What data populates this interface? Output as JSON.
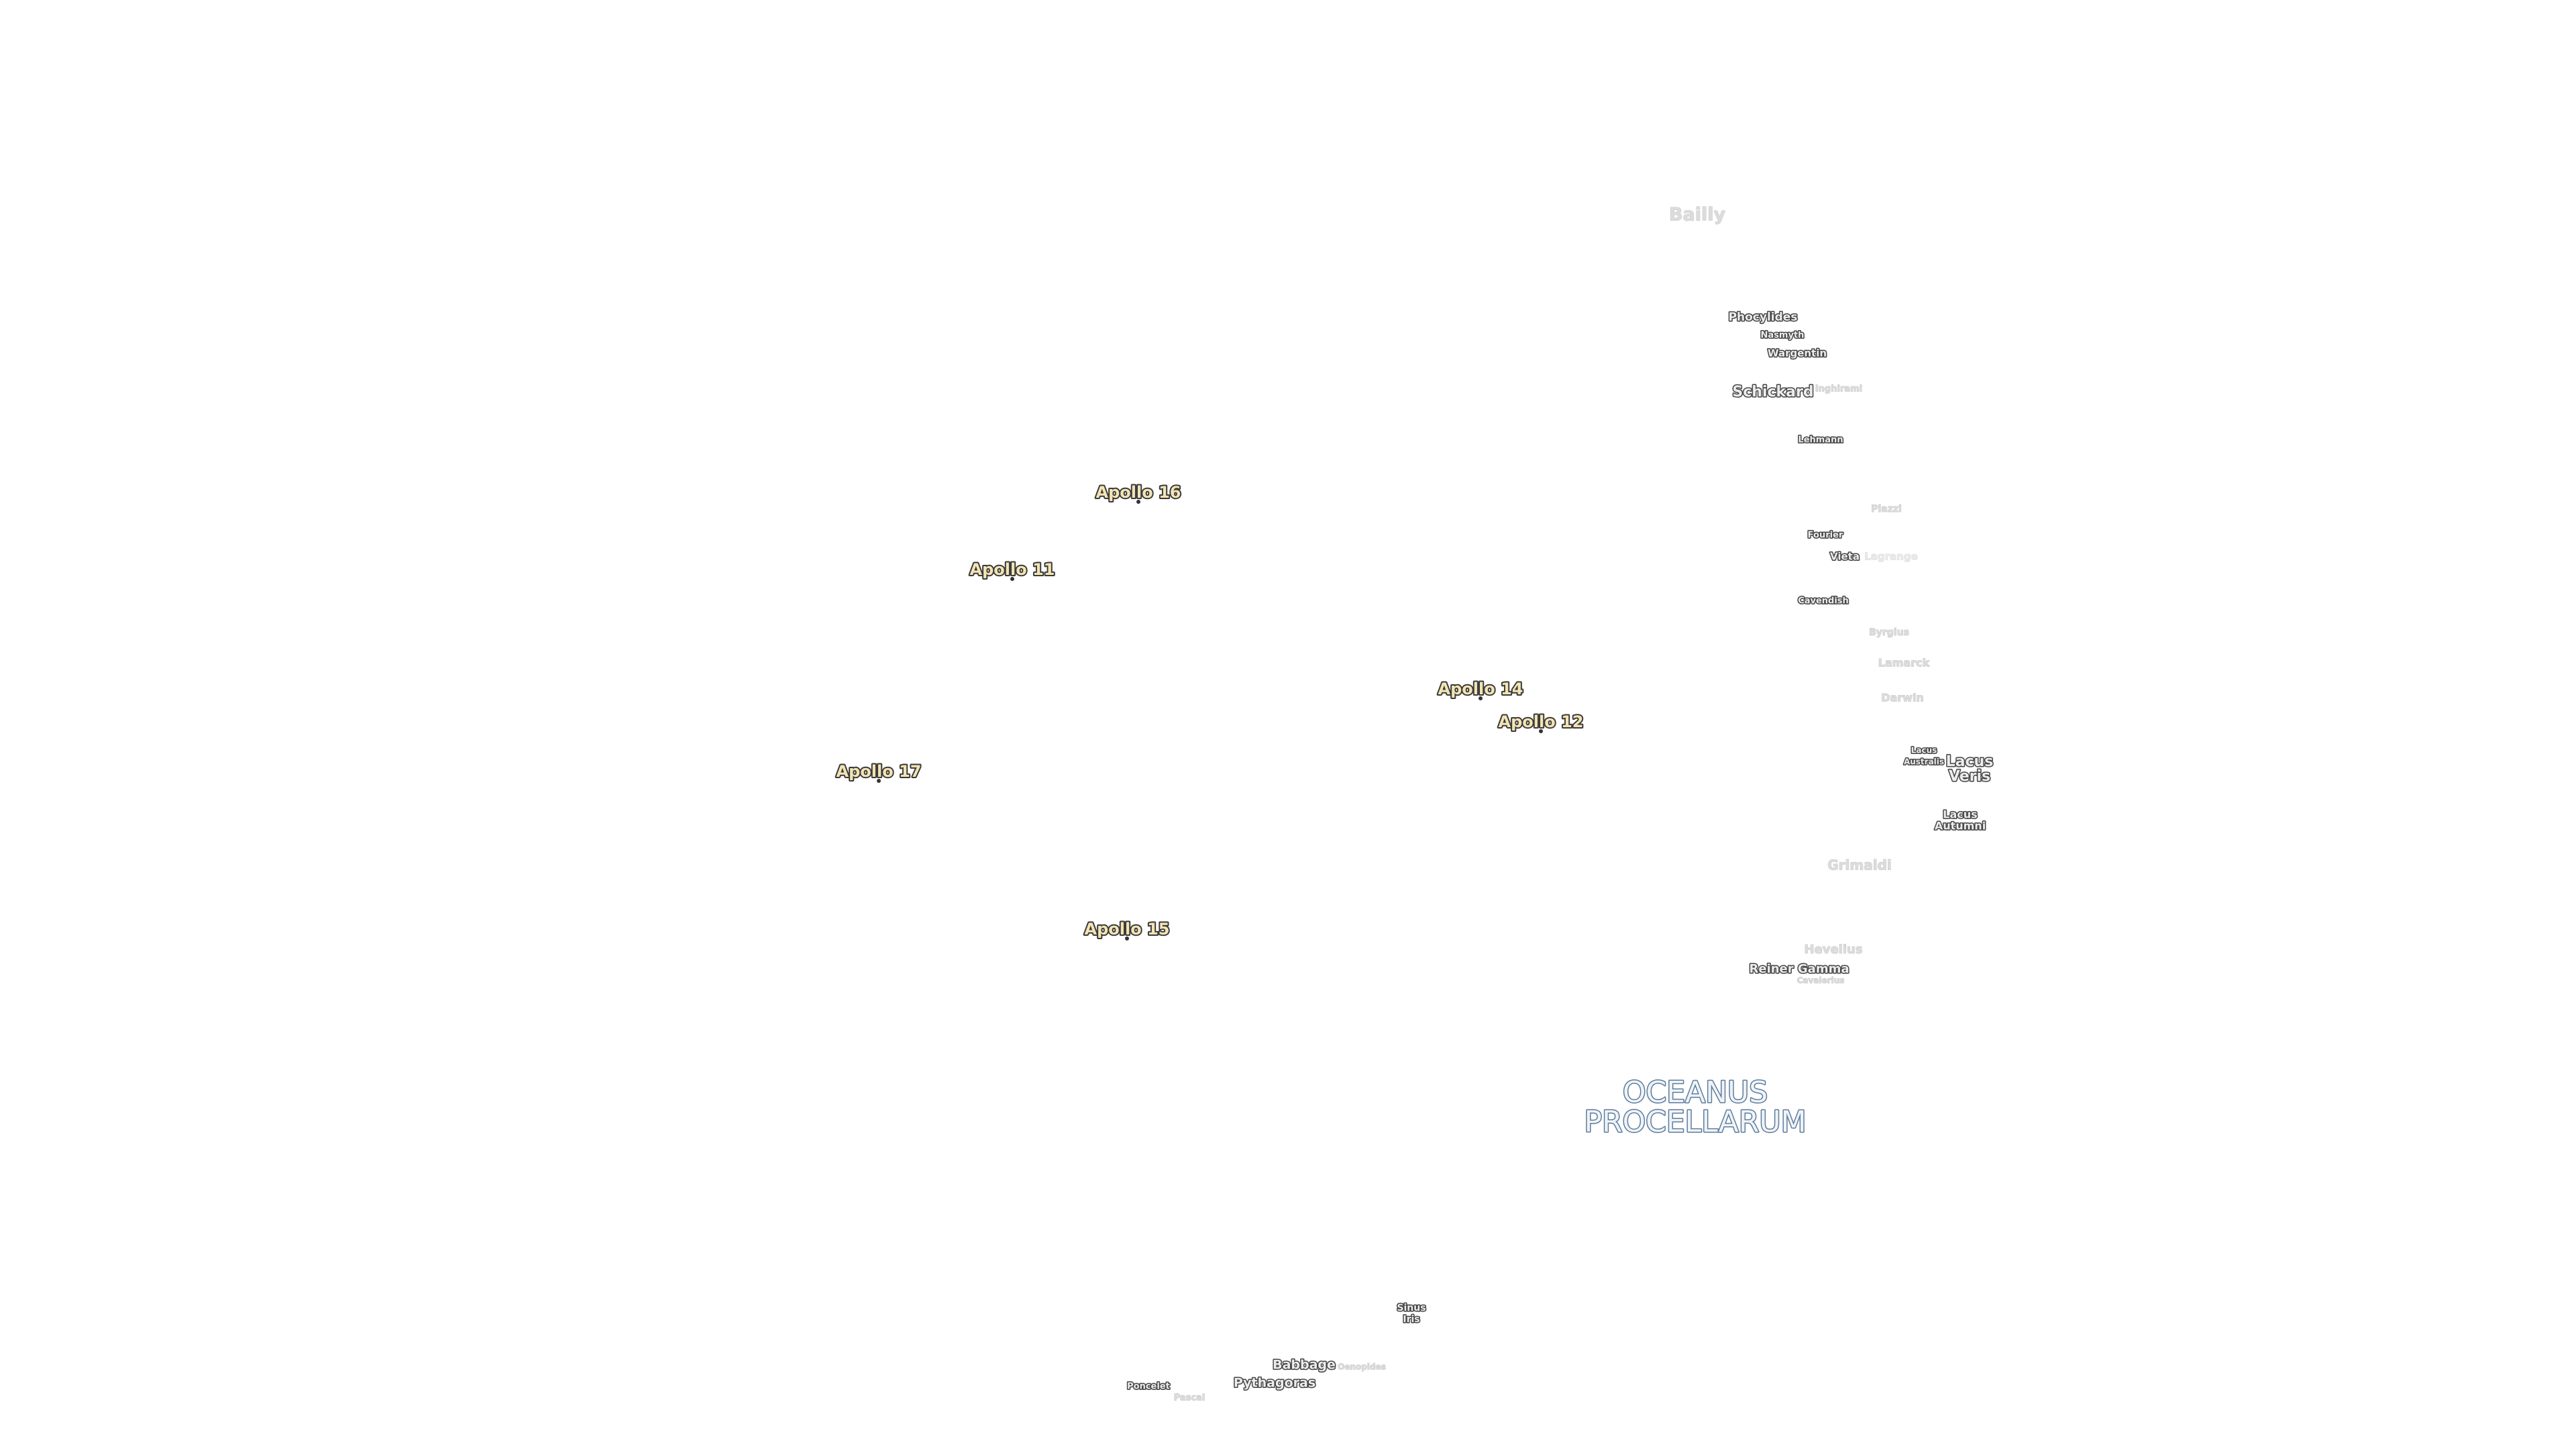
{
  "apollo_sites": [
    "Apollo 16",
    "Apollo 11",
    "Apollo 14",
    "Apollo 12",
    "Apollo 17",
    "Apollo 15"
  ],
  "features": [
    "Bailly",
    "Phocylides",
    "Nasmyth",
    "Wargentin",
    "Schickard",
    "Inghirami",
    "Lehmann",
    "Piazzi",
    "Fourier",
    "Vieta",
    "Lagrange",
    "Cavendish",
    "Byrgius",
    "Lamarck",
    "Darwin",
    [
      "Lacus",
      "Australis"
    ],
    [
      "Lacus",
      "Veris"
    ],
    [
      "Lacus",
      "Autumni"
    ],
    "Grimaldi",
    "Hevelius",
    "Reiner Gamma",
    "Cavalerius",
    [
      "Sinus",
      "Iris"
    ],
    "Babbage",
    "Oenopides",
    "Pythagoras",
    "Poncelet",
    "Pascal"
  ],
  "mare": [
    "OCEANUS",
    "PROCELLARUM"
  ]
}
